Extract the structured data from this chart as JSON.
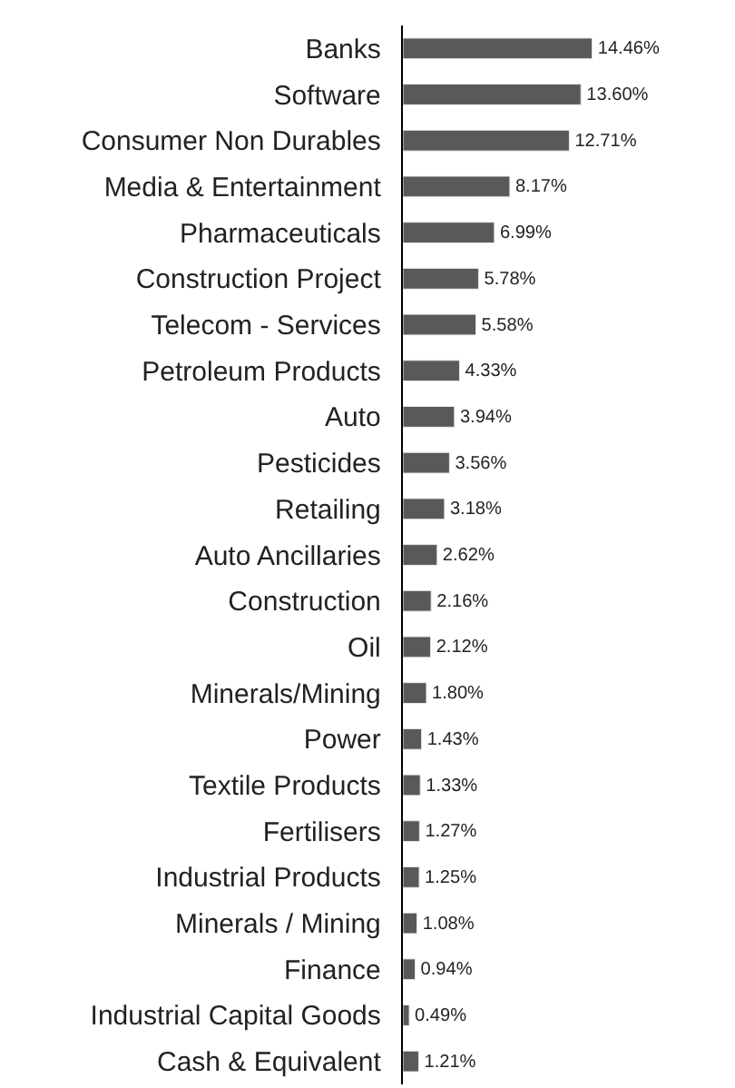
{
  "chart_data": {
    "type": "bar",
    "orientation": "horizontal",
    "categories": [
      "Banks",
      "Software",
      "Consumer Non Durables",
      "Media & Entertainment",
      "Pharmaceuticals",
      "Construction Project",
      "Telecom - Services",
      "Petroleum Products",
      "Auto",
      "Pesticides",
      "Retailing",
      "Auto Ancillaries",
      "Construction",
      "Oil",
      "Minerals/Mining",
      "Power",
      "Textile Products",
      "Fertilisers",
      "Industrial Products",
      "Minerals / Mining",
      "Finance",
      "Industrial Capital Goods",
      "Cash & Equivalent"
    ],
    "values": [
      14.46,
      13.6,
      12.71,
      8.17,
      6.99,
      5.78,
      5.58,
      4.33,
      3.94,
      3.56,
      3.18,
      2.62,
      2.16,
      2.12,
      1.8,
      1.43,
      1.33,
      1.27,
      1.25,
      1.08,
      0.94,
      0.49,
      1.21
    ],
    "value_labels": [
      "14.46%",
      "13.60%",
      "12.71%",
      "8.17%",
      "6.99%",
      "5.78%",
      "5.58%",
      "4.33%",
      "3.94%",
      "3.56%",
      "3.18%",
      "2.62%",
      "2.16%",
      "2.12%",
      "1.80%",
      "1.43%",
      "1.33%",
      "1.27%",
      "1.25%",
      "1.08%",
      "0.94%",
      "0.49%",
      "1.21%"
    ],
    "color": "#595959",
    "tick_labels": "y"
  }
}
